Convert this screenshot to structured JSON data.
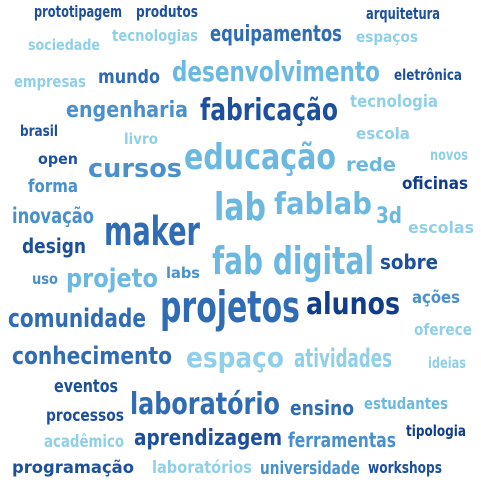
{
  "palette": {
    "light": "#8fd0e8",
    "sky": "#6bb8e0",
    "mid": "#4a90cc",
    "strong": "#2f6cb4",
    "dark": "#1c4f9c",
    "navy": "#0f3d8a"
  },
  "words": [
    {
      "text": "prototipagem",
      "color": "#1c4f9c"
    },
    {
      "text": "produtos",
      "color": "#1c4f9c"
    },
    {
      "text": "arquitetura",
      "color": "#1c4f9c"
    },
    {
      "text": "sociedade",
      "color": "#8fd0e8"
    },
    {
      "text": "tecnologias",
      "color": "#8fd0e8"
    },
    {
      "text": "equipamentos",
      "color": "#2f6cb4"
    },
    {
      "text": "espaços",
      "color": "#8fd0e8"
    },
    {
      "text": "empresas",
      "color": "#8fd0e8"
    },
    {
      "text": "mundo",
      "color": "#2f6cb4"
    },
    {
      "text": "desenvolvimento",
      "color": "#6bb8e0"
    },
    {
      "text": "eletrônica",
      "color": "#1c4f9c"
    },
    {
      "text": "engenharia",
      "color": "#4a90cc"
    },
    {
      "text": "fabricação",
      "color": "#1c4f9c"
    },
    {
      "text": "tecnologia",
      "color": "#8fd0e8"
    },
    {
      "text": "brasil",
      "color": "#1c4f9c"
    },
    {
      "text": "livro",
      "color": "#8fd0e8"
    },
    {
      "text": "escola",
      "color": "#8fd0e8"
    },
    {
      "text": "open",
      "color": "#1c4f9c"
    },
    {
      "text": "cursos",
      "color": "#4a90cc"
    },
    {
      "text": "educação",
      "color": "#6bb8e0"
    },
    {
      "text": "rede",
      "color": "#6bb8e0"
    },
    {
      "text": "novos",
      "color": "#8fd0e8"
    },
    {
      "text": "forma",
      "color": "#4a90cc"
    },
    {
      "text": "oficinas",
      "color": "#0f3d8a"
    },
    {
      "text": "lab",
      "color": "#6bb8e0"
    },
    {
      "text": "fablab",
      "color": "#6bb8e0"
    },
    {
      "text": "inovação",
      "color": "#4a90cc"
    },
    {
      "text": "3d",
      "color": "#6bb8e0"
    },
    {
      "text": "escolas",
      "color": "#8fd0e8"
    },
    {
      "text": "maker",
      "color": "#2f6cb4"
    },
    {
      "text": "design",
      "color": "#1c4f9c"
    },
    {
      "text": "fab digital",
      "color": "#6bb8e0"
    },
    {
      "text": "sobre",
      "color": "#1c4f9c"
    },
    {
      "text": "uso",
      "color": "#4a90cc"
    },
    {
      "text": "projeto",
      "color": "#6bb8e0"
    },
    {
      "text": "labs",
      "color": "#4a90cc"
    },
    {
      "text": "ações",
      "color": "#4a90cc"
    },
    {
      "text": "alunos",
      "color": "#0f3d8a"
    },
    {
      "text": "comunidade",
      "color": "#2f6cb4"
    },
    {
      "text": "projetos",
      "color": "#2f6cb4"
    },
    {
      "text": "oferece",
      "color": "#8fd0e8"
    },
    {
      "text": "conhecimento",
      "color": "#2f6cb4"
    },
    {
      "text": "espaço",
      "color": "#8fd0e8"
    },
    {
      "text": "atividades",
      "color": "#8fd0e8"
    },
    {
      "text": "ideias",
      "color": "#8fd0e8"
    },
    {
      "text": "eventos",
      "color": "#1c4f9c"
    },
    {
      "text": "processos",
      "color": "#1c4f9c"
    },
    {
      "text": "laboratório",
      "color": "#2f6cb4"
    },
    {
      "text": "ensino",
      "color": "#2f6cb4"
    },
    {
      "text": "estudantes",
      "color": "#6bb8e0"
    },
    {
      "text": "acadêmico",
      "color": "#8fd0e8"
    },
    {
      "text": "aprendizagem",
      "color": "#1c4f9c"
    },
    {
      "text": "ferramentas",
      "color": "#4a90cc"
    },
    {
      "text": "tipologia",
      "color": "#0f3d8a"
    },
    {
      "text": "programação",
      "color": "#1c4f9c"
    },
    {
      "text": "laboratórios",
      "color": "#8fd0e8"
    },
    {
      "text": "universidade",
      "color": "#4a90cc"
    },
    {
      "text": "workshops",
      "color": "#1c4f9c"
    }
  ]
}
